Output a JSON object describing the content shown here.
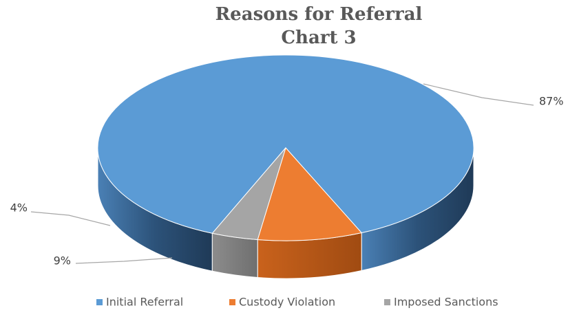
{
  "chart_data": {
    "type": "pie3d",
    "title": [
      "Reasons for Referral",
      "Chart 3"
    ],
    "categories": [
      "Initial Referral",
      "Custody Violation",
      "Imposed Sanctions"
    ],
    "values": [
      87,
      9,
      4
    ],
    "value_labels": [
      "87%",
      "9%",
      "4%"
    ],
    "colors": [
      "#5b9bd5",
      "#ed7d31",
      "#a5a5a5"
    ],
    "legend": "bottom"
  }
}
